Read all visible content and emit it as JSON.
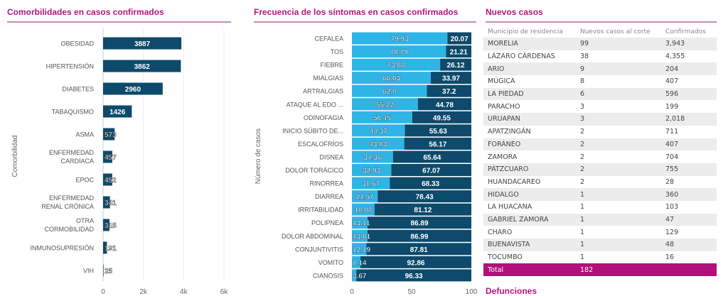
{
  "colors": {
    "accent": "#b5157f",
    "bar_dark": "#0d4a6b",
    "bar_light": "#2fb4e6",
    "total_bg": "#b0107a"
  },
  "chart_data": [
    {
      "type": "bar",
      "orientation": "horizontal",
      "title": "Comorbilidades en casos confirmados",
      "ylabel": "Comorbilidad",
      "xlabel": "",
      "categories": [
        "OBESIDAD",
        "HIPERTENSIÓN",
        "DIABETES",
        "TABAQUISMO",
        "ASMA",
        "ENFERMEDAD CARDÍACA",
        "EPOC",
        "ENFERMEDAD RENAL CRÓNICA",
        "OTRA CORMOBILIDAD",
        "INMUNOSUPRESIÓN",
        "VIH"
      ],
      "values": [
        3887,
        3862,
        2960,
        1426,
        573,
        457,
        452,
        341,
        315,
        191,
        25
      ],
      "xlim": [
        0,
        6000
      ],
      "xticks": [
        "0",
        "2k",
        "4k",
        "6k"
      ],
      "grid": true
    },
    {
      "type": "bar",
      "orientation": "horizontal",
      "stacked": true,
      "title": "Frecuencia de los síntomas en casos confirmados",
      "ylabel": "Número de casos",
      "xlabel": "",
      "categories": [
        "CEFALEA",
        "TOS",
        "FIEBRE",
        "MIALGIAS",
        "ARTRALGIAS",
        "ATAQUE AL EDO ...",
        "ODINOFAGIA",
        "INICIO SÚBITO DE...",
        "ESCALOFRÍOS",
        "DISNEA",
        "DOLOR TORÁCICO",
        "RINORREA",
        "DIARREA",
        "IRRITABILIDAD",
        "POLIPNEA",
        "DOLOR ABDOMINAL",
        "CONJUNTIVITIS",
        "VOMITO",
        "CIANOSIS"
      ],
      "series": [
        {
          "values": [
            79.93,
            78.79,
            73.88,
            66.03,
            62.8,
            55.22,
            50.45,
            44.37,
            43.83,
            34.36,
            32.93,
            31.67,
            21.57,
            18.88,
            13.11,
            13.01,
            12.19,
            7.14,
            3.67
          ]
        },
        {
          "values": [
            20.07,
            21.21,
            26.12,
            33.97,
            37.2,
            44.78,
            49.55,
            55.63,
            56.17,
            65.64,
            67.07,
            68.33,
            78.43,
            81.12,
            86.89,
            86.99,
            87.81,
            92.86,
            96.33
          ]
        }
      ],
      "xlim": [
        0,
        100
      ],
      "xticks": [
        "0",
        "50",
        "100"
      ]
    }
  ],
  "table": {
    "title": "Nuevos casos",
    "headers": [
      "Municipio de residencia",
      "Nuevos casos al corte",
      "Confirmados"
    ],
    "rows": [
      [
        "MORELIA",
        "99",
        "3,943"
      ],
      [
        "LÁZARO CÁRDENAS",
        "38",
        "4,355"
      ],
      [
        "ARIO",
        "9",
        "204"
      ],
      [
        "MÚGICA",
        "8",
        "407"
      ],
      [
        "LA PIEDAD",
        "6",
        "596"
      ],
      [
        "PARACHO",
        "3",
        "199"
      ],
      [
        "URUAPAN",
        "3",
        "2,018"
      ],
      [
        "APATZINGÁN",
        "2",
        "711"
      ],
      [
        "FORÁNEO",
        "2",
        "407"
      ],
      [
        "ZAMORA",
        "2",
        "704"
      ],
      [
        "PÁTZCUARO",
        "2",
        "755"
      ],
      [
        "HUANDACAREO",
        "2",
        "28"
      ],
      [
        "HIDALGO",
        "1",
        "360"
      ],
      [
        "LA HUACANA",
        "1",
        "103"
      ],
      [
        "GABRIEL ZAMORA",
        "1",
        "47"
      ],
      [
        "CHARO",
        "1",
        "129"
      ],
      [
        "BUENAVISTA",
        "1",
        "48"
      ],
      [
        "TOCUMBO",
        "1",
        "16"
      ]
    ],
    "total": {
      "label": "Total",
      "value": "182"
    }
  },
  "next_section": "Defunciones"
}
